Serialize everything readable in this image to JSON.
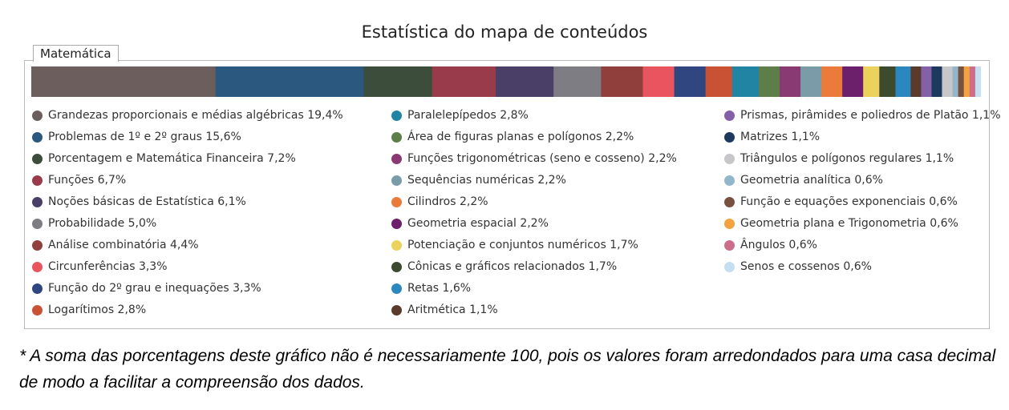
{
  "title": "Estatística do mapa de conteúdos",
  "tab_label": "Matemática",
  "footnote": "* A soma das porcentagens deste gráfico não é necessariamente 100, pois os valores foram arredondados para uma casa decimal de modo a facilitar a compreensão dos dados.",
  "chart_data": {
    "type": "bar",
    "stacked": true,
    "orientation": "horizontal",
    "legend": "below",
    "grid": false,
    "series": [
      {
        "name": "Grandezas proporcionais e médias algébricas",
        "value": 19.4,
        "label": "Grandezas proporcionais e médias algébricas 19,4%",
        "color": "#6b5e5c"
      },
      {
        "name": "Problemas de 1º e 2º graus",
        "value": 15.6,
        "label": "Problemas de 1º e 2º graus 15,6%",
        "color": "#2b587f"
      },
      {
        "name": "Porcentagem e Matemática Financeira",
        "value": 7.2,
        "label": "Porcentagem e Matemática Financeira 7,2%",
        "color": "#3d4d3b"
      },
      {
        "name": "Funções",
        "value": 6.7,
        "label": "Funções 6,7%",
        "color": "#9a3b4b"
      },
      {
        "name": "Noções básicas de Estatística",
        "value": 6.1,
        "label": "Noções básicas de Estatística 6,1%",
        "color": "#4a3f66"
      },
      {
        "name": "Probabilidade",
        "value": 5.0,
        "label": "Probabilidade 5,0%",
        "color": "#7e7d84"
      },
      {
        "name": "Análise combinatória",
        "value": 4.4,
        "label": "Análise combinatória 4,4%",
        "color": "#913f3c"
      },
      {
        "name": "Circunferências",
        "value": 3.3,
        "label": "Circunferências 3,3%",
        "color": "#e8555e"
      },
      {
        "name": "Função do 2º grau e inequações",
        "value": 3.3,
        "label": "Função do 2º grau e inequações 3,3%",
        "color": "#2f4680"
      },
      {
        "name": "Logaritmos",
        "value": 2.8,
        "label": "Logarítimos 2,8%",
        "color": "#c95234"
      },
      {
        "name": "Paralelepípedos",
        "value": 2.8,
        "label": "Paralelepípedos 2,8%",
        "color": "#1f85a3"
      },
      {
        "name": "Área de figuras planas e polígonos",
        "value": 2.2,
        "label": "Área de figuras planas e polígonos 2,2%",
        "color": "#5e7e49"
      },
      {
        "name": "Funções trigonométricas (seno e cosseno)",
        "value": 2.2,
        "label": "Funções trigonométricas (seno e cosseno) 2,2%",
        "color": "#8a3a72"
      },
      {
        "name": "Sequências numéricas",
        "value": 2.2,
        "label": "Sequências numéricas 2,2%",
        "color": "#7a9ba8"
      },
      {
        "name": "Cilindros",
        "value": 2.2,
        "label": "Cilindros 2,2%",
        "color": "#ea7b3b"
      },
      {
        "name": "Geometria espacial",
        "value": 2.2,
        "label": "Geometria espacial 2,2%",
        "color": "#6c1f6b"
      },
      {
        "name": "Potenciação e conjuntos numéricos",
        "value": 1.7,
        "label": "Potenciação e conjuntos numéricos 1,7%",
        "color": "#ebd25c"
      },
      {
        "name": "Cônicas e gráficos relacionados",
        "value": 1.7,
        "label": "Cônicas e gráficos relacionados 1,7%",
        "color": "#3c4a2e"
      },
      {
        "name": "Retas",
        "value": 1.6,
        "label": "Retas 1,6%",
        "color": "#2b88bf"
      },
      {
        "name": "Aritmética",
        "value": 1.1,
        "label": "Aritmética 1,1%",
        "color": "#5a3a2b"
      },
      {
        "name": "Prismas, pirâmides e poliedros de Platão",
        "value": 1.1,
        "label": "Prismas, pirâmides e poliedros de Platão 1,1%",
        "color": "#8460a8"
      },
      {
        "name": "Matrizes",
        "value": 1.1,
        "label": "Matrizes 1,1%",
        "color": "#1d3a5e"
      },
      {
        "name": "Triângulos e polígonos regulares",
        "value": 1.1,
        "label": "Triângulos e polígonos regulares 1,1%",
        "color": "#c7c7c9"
      },
      {
        "name": "Geometria analítica",
        "value": 0.6,
        "label": "Geometria analítica 0,6%",
        "color": "#93b6cb"
      },
      {
        "name": "Função e equações exponenciais",
        "value": 0.6,
        "label": "Função e equações exponenciais 0,6%",
        "color": "#7a5140"
      },
      {
        "name": "Geometria plana e Trigonometria",
        "value": 0.6,
        "label": "Geometria plana e Trigonometria 0,6%",
        "color": "#f2a23e"
      },
      {
        "name": "Ângulos",
        "value": 0.6,
        "label": "Ângulos 0,6%",
        "color": "#cc6d8c"
      },
      {
        "name": "Senos e cossenos",
        "value": 0.6,
        "label": "Senos e cossenos 0,6%",
        "color": "#c3dff0"
      }
    ]
  }
}
